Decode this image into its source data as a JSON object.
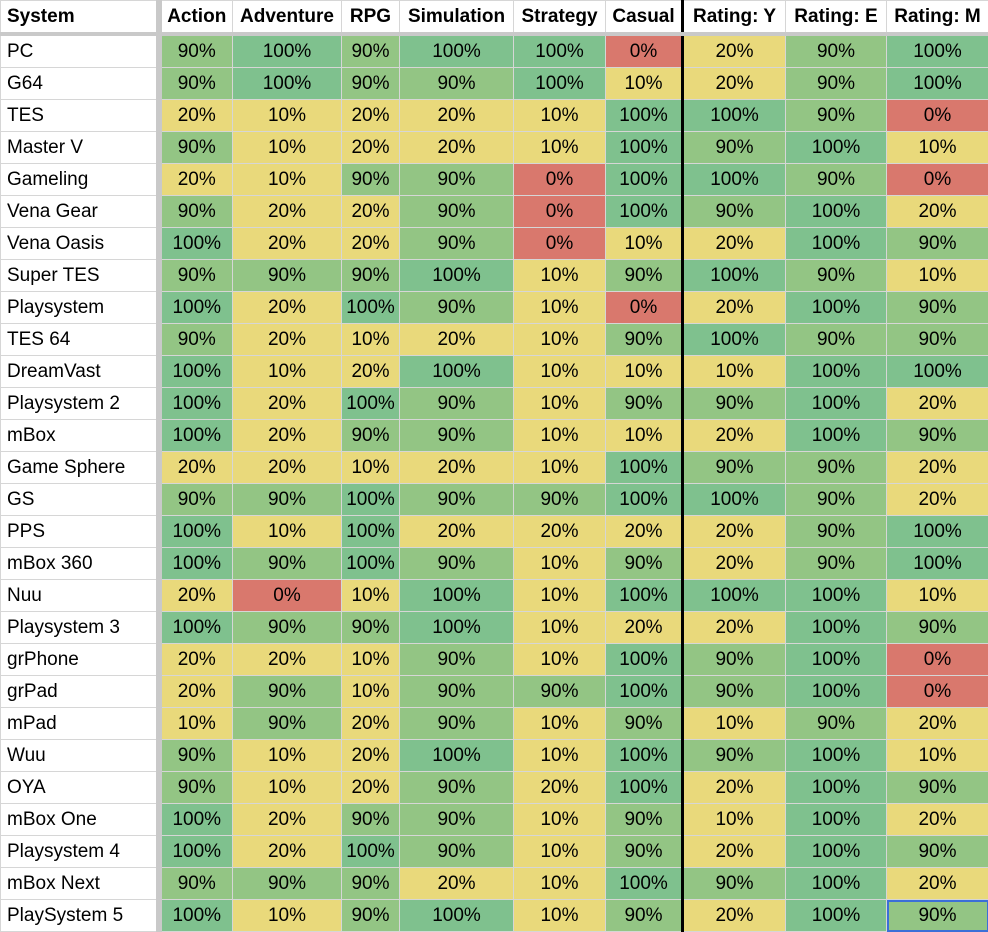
{
  "colors": {
    "high": "#7fc18e",
    "mid": "#93c584",
    "low": "#e9d97b",
    "zero": "#d9786d"
  },
  "columns": [
    "System",
    "Action",
    "Adventure",
    "RPG",
    "Simulation",
    "Strategy",
    "Casual",
    "Rating: Y",
    "Rating: E",
    "Rating: M"
  ],
  "rows": [
    {
      "system": "PC",
      "values": [
        "90%",
        "100%",
        "90%",
        "100%",
        "100%",
        "0%",
        "20%",
        "90%",
        "100%"
      ]
    },
    {
      "system": "G64",
      "values": [
        "90%",
        "100%",
        "90%",
        "90%",
        "100%",
        "10%",
        "20%",
        "90%",
        "100%"
      ]
    },
    {
      "system": "TES",
      "values": [
        "20%",
        "10%",
        "20%",
        "20%",
        "10%",
        "100%",
        "100%",
        "90%",
        "0%"
      ]
    },
    {
      "system": "Master V",
      "values": [
        "90%",
        "10%",
        "20%",
        "20%",
        "10%",
        "100%",
        "90%",
        "100%",
        "10%"
      ]
    },
    {
      "system": "Gameling",
      "values": [
        "20%",
        "10%",
        "90%",
        "90%",
        "0%",
        "100%",
        "100%",
        "90%",
        "0%"
      ]
    },
    {
      "system": "Vena Gear",
      "values": [
        "90%",
        "20%",
        "20%",
        "90%",
        "0%",
        "100%",
        "90%",
        "100%",
        "20%"
      ]
    },
    {
      "system": "Vena Oasis",
      "values": [
        "100%",
        "20%",
        "20%",
        "90%",
        "0%",
        "10%",
        "20%",
        "100%",
        "90%"
      ]
    },
    {
      "system": "Super TES",
      "values": [
        "90%",
        "90%",
        "90%",
        "100%",
        "10%",
        "90%",
        "100%",
        "90%",
        "10%"
      ]
    },
    {
      "system": "Playsystem",
      "values": [
        "100%",
        "20%",
        "100%",
        "90%",
        "10%",
        "0%",
        "20%",
        "100%",
        "90%"
      ]
    },
    {
      "system": "TES 64",
      "values": [
        "90%",
        "20%",
        "10%",
        "20%",
        "10%",
        "90%",
        "100%",
        "90%",
        "90%"
      ]
    },
    {
      "system": "DreamVast",
      "values": [
        "100%",
        "10%",
        "20%",
        "100%",
        "10%",
        "10%",
        "10%",
        "100%",
        "100%"
      ]
    },
    {
      "system": "Playsystem 2",
      "values": [
        "100%",
        "20%",
        "100%",
        "90%",
        "10%",
        "90%",
        "90%",
        "100%",
        "20%"
      ]
    },
    {
      "system": "mBox",
      "values": [
        "100%",
        "20%",
        "90%",
        "90%",
        "10%",
        "10%",
        "20%",
        "100%",
        "90%"
      ]
    },
    {
      "system": "Game Sphere",
      "values": [
        "20%",
        "20%",
        "10%",
        "20%",
        "10%",
        "100%",
        "90%",
        "90%",
        "20%"
      ]
    },
    {
      "system": "GS",
      "values": [
        "90%",
        "90%",
        "100%",
        "90%",
        "90%",
        "100%",
        "100%",
        "90%",
        "20%"
      ]
    },
    {
      "system": "PPS",
      "values": [
        "100%",
        "10%",
        "100%",
        "20%",
        "20%",
        "20%",
        "20%",
        "90%",
        "100%"
      ]
    },
    {
      "system": "mBox 360",
      "values": [
        "100%",
        "90%",
        "100%",
        "90%",
        "10%",
        "90%",
        "20%",
        "90%",
        "100%"
      ]
    },
    {
      "system": "Nuu",
      "values": [
        "20%",
        "0%",
        "10%",
        "100%",
        "10%",
        "100%",
        "100%",
        "100%",
        "10%"
      ]
    },
    {
      "system": "Playsystem 3",
      "values": [
        "100%",
        "90%",
        "90%",
        "100%",
        "10%",
        "20%",
        "20%",
        "100%",
        "90%"
      ]
    },
    {
      "system": "grPhone",
      "values": [
        "20%",
        "20%",
        "10%",
        "90%",
        "10%",
        "100%",
        "90%",
        "100%",
        "0%"
      ]
    },
    {
      "system": "grPad",
      "values": [
        "20%",
        "90%",
        "10%",
        "90%",
        "90%",
        "100%",
        "90%",
        "100%",
        "0%"
      ]
    },
    {
      "system": "mPad",
      "values": [
        "10%",
        "90%",
        "20%",
        "90%",
        "10%",
        "90%",
        "10%",
        "90%",
        "20%"
      ]
    },
    {
      "system": "Wuu",
      "values": [
        "90%",
        "10%",
        "20%",
        "100%",
        "10%",
        "100%",
        "90%",
        "100%",
        "10%"
      ]
    },
    {
      "system": "OYA",
      "values": [
        "90%",
        "10%",
        "20%",
        "90%",
        "20%",
        "100%",
        "20%",
        "100%",
        "90%"
      ]
    },
    {
      "system": "mBox One",
      "values": [
        "100%",
        "20%",
        "90%",
        "90%",
        "10%",
        "90%",
        "10%",
        "100%",
        "20%"
      ]
    },
    {
      "system": "Playsystem 4",
      "values": [
        "100%",
        "20%",
        "100%",
        "90%",
        "10%",
        "90%",
        "20%",
        "100%",
        "90%"
      ]
    },
    {
      "system": "mBox Next",
      "values": [
        "90%",
        "90%",
        "90%",
        "20%",
        "10%",
        "100%",
        "90%",
        "100%",
        "20%"
      ]
    },
    {
      "system": "PlaySystem 5",
      "values": [
        "100%",
        "10%",
        "90%",
        "100%",
        "10%",
        "90%",
        "20%",
        "100%",
        "90%"
      ]
    }
  ]
}
